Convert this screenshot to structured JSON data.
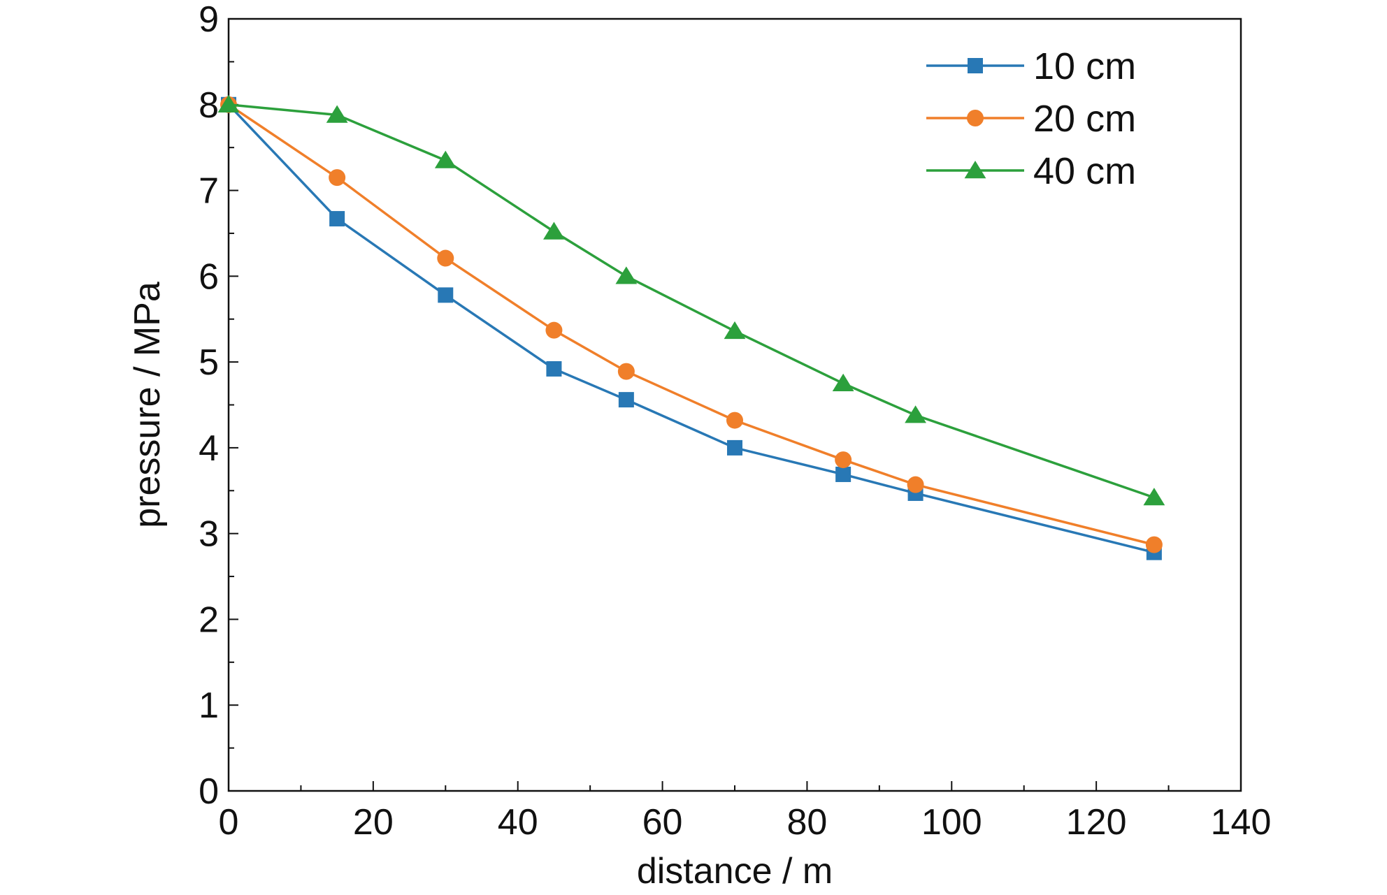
{
  "chart_data": {
    "type": "line",
    "xlabel": "distance / m",
    "ylabel": "pressure / MPa",
    "xlim": [
      0,
      140
    ],
    "ylim": [
      0,
      9
    ],
    "xticks": [
      0,
      20,
      40,
      60,
      80,
      100,
      120,
      140
    ],
    "yticks": [
      0,
      1,
      2,
      3,
      4,
      5,
      6,
      7,
      8,
      9
    ],
    "x_minor_step": 10,
    "y_minor_step": 0.5,
    "grid": false,
    "legend_position": "top-right",
    "x": [
      0,
      15,
      30,
      45,
      55,
      70,
      85,
      95,
      128
    ],
    "series": [
      {
        "name": "10 cm",
        "color": "#2878b5",
        "marker": "square",
        "values": [
          8.0,
          6.67,
          5.78,
          4.92,
          4.56,
          4.0,
          3.69,
          3.47,
          2.78
        ]
      },
      {
        "name": "20 cm",
        "color": "#f07f2a",
        "marker": "circle",
        "values": [
          8.0,
          7.15,
          6.21,
          5.37,
          4.89,
          4.32,
          3.86,
          3.57,
          2.87
        ]
      },
      {
        "name": "40 cm",
        "color": "#2ca03c",
        "marker": "triangle",
        "values": [
          8.0,
          7.88,
          7.35,
          6.52,
          6.0,
          5.36,
          4.75,
          4.38,
          3.42
        ]
      }
    ]
  }
}
